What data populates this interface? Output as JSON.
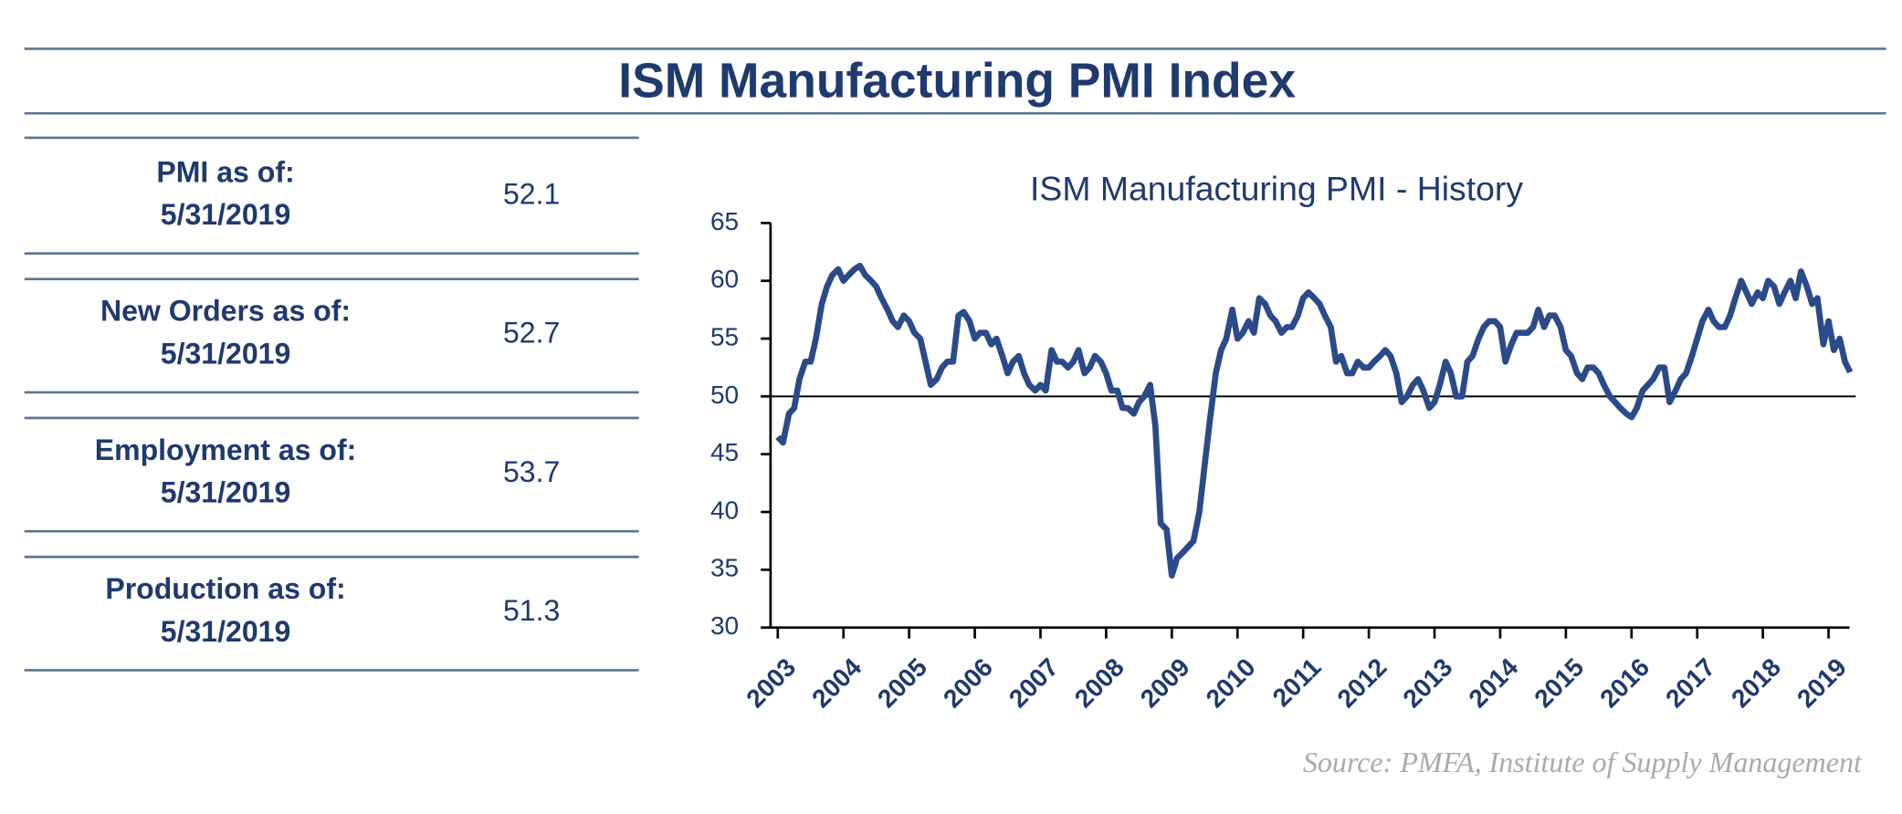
{
  "header": {
    "title": "ISM Manufacturing PMI Index"
  },
  "table": {
    "rows": [
      {
        "label": "PMI as of:",
        "date": "5/31/2019",
        "value": 52.1
      },
      {
        "label": "New Orders as of:",
        "date": "5/31/2019",
        "value": 52.7
      },
      {
        "label": "Employment as of:",
        "date": "5/31/2019",
        "value": 53.7
      },
      {
        "label": "Production as of:",
        "date": "5/31/2019",
        "value": 51.3
      }
    ]
  },
  "source": "Source:  PMFA,  Institute  of Supply Management",
  "chart_data": {
    "type": "line",
    "title": "ISM Manufacturing PMI - History",
    "x": [
      2003,
      2003.08,
      2003.17,
      2003.25,
      2003.33,
      2003.42,
      2003.5,
      2003.58,
      2003.67,
      2003.75,
      2003.83,
      2003.92,
      2004,
      2004.08,
      2004.17,
      2004.25,
      2004.33,
      2004.42,
      2004.5,
      2004.58,
      2004.67,
      2004.75,
      2004.83,
      2004.92,
      2005,
      2005.08,
      2005.17,
      2005.25,
      2005.33,
      2005.42,
      2005.5,
      2005.58,
      2005.67,
      2005.75,
      2005.83,
      2005.92,
      2006,
      2006.08,
      2006.17,
      2006.25,
      2006.33,
      2006.42,
      2006.5,
      2006.58,
      2006.67,
      2006.75,
      2006.83,
      2006.92,
      2007,
      2007.08,
      2007.17,
      2007.25,
      2007.33,
      2007.42,
      2007.5,
      2007.58,
      2007.67,
      2007.75,
      2007.83,
      2007.92,
      2008,
      2008.08,
      2008.17,
      2008.25,
      2008.33,
      2008.42,
      2008.5,
      2008.58,
      2008.67,
      2008.75,
      2008.83,
      2008.92,
      2009,
      2009.08,
      2009.17,
      2009.25,
      2009.33,
      2009.42,
      2009.5,
      2009.58,
      2009.67,
      2009.75,
      2009.83,
      2009.92,
      2010,
      2010.08,
      2010.17,
      2010.25,
      2010.33,
      2010.42,
      2010.5,
      2010.58,
      2010.67,
      2010.75,
      2010.83,
      2010.92,
      2011,
      2011.08,
      2011.17,
      2011.25,
      2011.33,
      2011.42,
      2011.5,
      2011.58,
      2011.67,
      2011.75,
      2011.83,
      2011.92,
      2012,
      2012.08,
      2012.17,
      2012.25,
      2012.33,
      2012.42,
      2012.5,
      2012.58,
      2012.67,
      2012.75,
      2012.83,
      2012.92,
      2013,
      2013.08,
      2013.17,
      2013.25,
      2013.33,
      2013.42,
      2013.5,
      2013.58,
      2013.67,
      2013.75,
      2013.83,
      2013.92,
      2014,
      2014.08,
      2014.17,
      2014.25,
      2014.33,
      2014.42,
      2014.5,
      2014.58,
      2014.67,
      2014.75,
      2014.83,
      2014.92,
      2015,
      2015.08,
      2015.17,
      2015.25,
      2015.33,
      2015.42,
      2015.5,
      2015.58,
      2015.67,
      2015.75,
      2015.83,
      2015.92,
      2016,
      2016.08,
      2016.17,
      2016.25,
      2016.33,
      2016.42,
      2016.5,
      2016.58,
      2016.67,
      2016.75,
      2016.83,
      2016.92,
      2017,
      2017.08,
      2017.17,
      2017.25,
      2017.33,
      2017.42,
      2017.5,
      2017.58,
      2017.67,
      2017.75,
      2017.83,
      2017.92,
      2018,
      2018.08,
      2018.17,
      2018.25,
      2018.33,
      2018.42,
      2018.5,
      2018.58,
      2018.67,
      2018.75,
      2018.83,
      2018.92,
      2019,
      2019.08,
      2019.17,
      2019.25,
      2019.33
    ],
    "series": [
      {
        "name": "PMI",
        "color": "#2a4a8a",
        "values": [
          46.5,
          46,
          48.5,
          49,
          51.5,
          53,
          53,
          55,
          58,
          59.5,
          60.5,
          61,
          60,
          60.5,
          61,
          61.3,
          60.5,
          60,
          59.5,
          58.5,
          57.5,
          56.5,
          56,
          57,
          56.5,
          55.5,
          55,
          53,
          51,
          51.5,
          52.5,
          53,
          53,
          57,
          57.3,
          56.5,
          55,
          55.5,
          55.5,
          54.5,
          55,
          53.5,
          52,
          53,
          53.5,
          52,
          51,
          50.5,
          51,
          50.5,
          54,
          53,
          53,
          52.5,
          53,
          54,
          52,
          52.5,
          53.5,
          53,
          52,
          50.5,
          50.5,
          49,
          49,
          48.5,
          49.5,
          50,
          51,
          47.5,
          39,
          38.5,
          34.5,
          36,
          36.5,
          37,
          37.5,
          40,
          44,
          48,
          52,
          54,
          55,
          57.5,
          55,
          55.5,
          56.5,
          55.5,
          58.5,
          58,
          57,
          56.5,
          55.5,
          56,
          56,
          57,
          58.5,
          59,
          58.5,
          58,
          57,
          56,
          53,
          53.5,
          52,
          52,
          53,
          52.5,
          52.5,
          53,
          53.5,
          54,
          53.5,
          52,
          49.5,
          50,
          51,
          51.5,
          50.5,
          49,
          49.5,
          51,
          53,
          52,
          50,
          50,
          53,
          53.5,
          55,
          56,
          56.5,
          56.5,
          56,
          53,
          54.5,
          55.5,
          55.5,
          55.5,
          56,
          57.5,
          56,
          57,
          57,
          56,
          54,
          53.5,
          52,
          51.5,
          52.5,
          52.5,
          52,
          51,
          50,
          49.5,
          49,
          48.5,
          48.2,
          49,
          50.5,
          51,
          51.5,
          52.5,
          52.5,
          49.5,
          50.5,
          51.5,
          52,
          53.5,
          55,
          56.5,
          57.5,
          56.5,
          56,
          56,
          57,
          58.5,
          60,
          59,
          58,
          59,
          58.5,
          60,
          59.5,
          58,
          59,
          60,
          58.5,
          60.8,
          59.5,
          58,
          58.5,
          54.5,
          56.5,
          54,
          55,
          53,
          52.1
        ]
      }
    ],
    "xlim": [
      2002.89,
      2019.32
    ],
    "xticks": [
      2003,
      2004,
      2005,
      2006,
      2007,
      2008,
      2009,
      2010,
      2011,
      2012,
      2013,
      2014,
      2015,
      2016,
      2017,
      2018,
      2019
    ],
    "ylim": [
      30,
      65
    ],
    "yticks": [
      30,
      35,
      40,
      45,
      50,
      55,
      60,
      65
    ],
    "hline": 50
  }
}
